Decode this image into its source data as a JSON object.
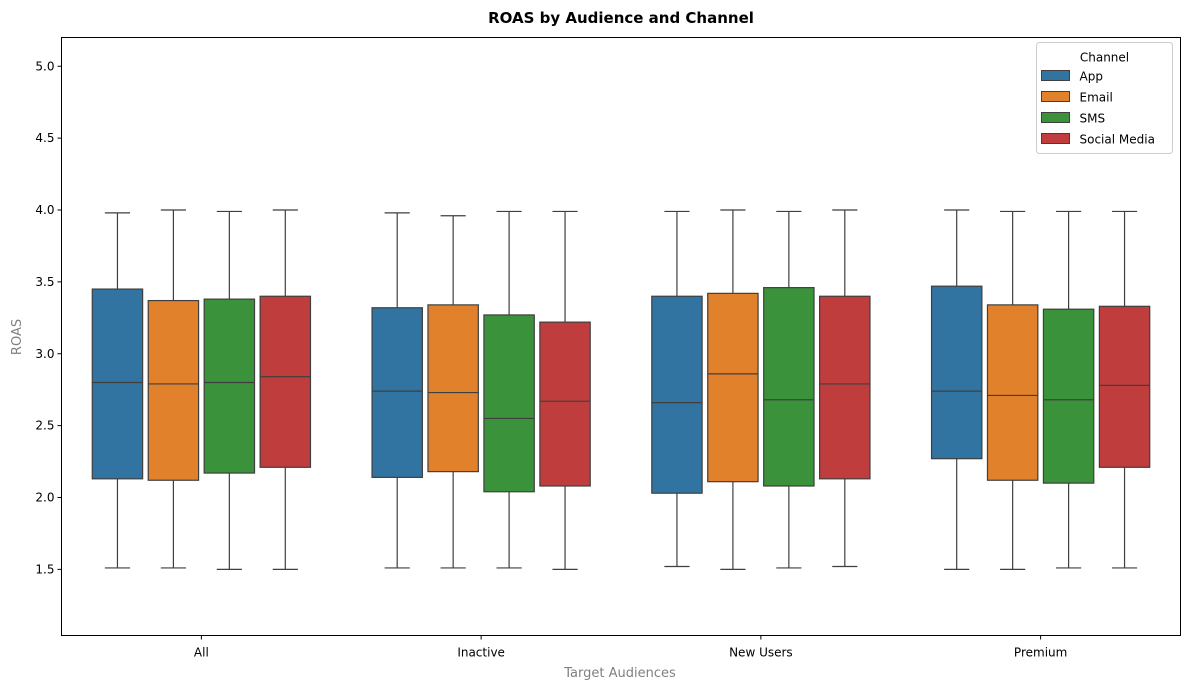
{
  "chart_data": {
    "type": "box",
    "title": "ROAS by Audience and Channel",
    "xlabel": "Target Audiences",
    "ylabel": "ROAS",
    "ylim": [
      1.04,
      5.2
    ],
    "yticks": [
      1.5,
      2.0,
      2.5,
      3.0,
      3.5,
      4.0,
      4.5,
      5.0
    ],
    "ytick_labels": [
      "1.5",
      "2.0",
      "2.5",
      "3.0",
      "3.5",
      "4.0",
      "4.5",
      "5.0"
    ],
    "grid": false,
    "categories": [
      "All",
      "Inactive",
      "New Users",
      "Premium"
    ],
    "legend": {
      "title": "Channel",
      "placement": "top-right"
    },
    "series": [
      {
        "name": "App",
        "color": "#3274a1",
        "boxes": [
          {
            "min": 1.51,
            "q1": 2.13,
            "median": 2.8,
            "q3": 3.45,
            "max": 3.98
          },
          {
            "min": 1.51,
            "q1": 2.14,
            "median": 2.74,
            "q3": 3.32,
            "max": 3.98
          },
          {
            "min": 1.52,
            "q1": 2.03,
            "median": 2.66,
            "q3": 3.4,
            "max": 3.99
          },
          {
            "min": 1.5,
            "q1": 2.27,
            "median": 2.74,
            "q3": 3.47,
            "max": 4.0
          }
        ]
      },
      {
        "name": "Email",
        "color": "#e1812c",
        "boxes": [
          {
            "min": 1.51,
            "q1": 2.12,
            "median": 2.79,
            "q3": 3.37,
            "max": 4.0
          },
          {
            "min": 1.51,
            "q1": 2.18,
            "median": 2.73,
            "q3": 3.34,
            "max": 3.96
          },
          {
            "min": 1.5,
            "q1": 2.11,
            "median": 2.86,
            "q3": 3.42,
            "max": 4.0
          },
          {
            "min": 1.5,
            "q1": 2.12,
            "median": 2.71,
            "q3": 3.34,
            "max": 3.99
          }
        ]
      },
      {
        "name": "SMS",
        "color": "#3a923a",
        "boxes": [
          {
            "min": 1.5,
            "q1": 2.17,
            "median": 2.8,
            "q3": 3.38,
            "max": 3.99
          },
          {
            "min": 1.51,
            "q1": 2.04,
            "median": 2.55,
            "q3": 3.27,
            "max": 3.99
          },
          {
            "min": 1.51,
            "q1": 2.08,
            "median": 2.68,
            "q3": 3.46,
            "max": 3.99
          },
          {
            "min": 1.51,
            "q1": 2.1,
            "median": 2.68,
            "q3": 3.31,
            "max": 3.99
          }
        ]
      },
      {
        "name": "Social Media",
        "color": "#c03d3e",
        "boxes": [
          {
            "min": 1.5,
            "q1": 2.21,
            "median": 2.84,
            "q3": 3.4,
            "max": 4.0
          },
          {
            "min": 1.5,
            "q1": 2.08,
            "median": 2.67,
            "q3": 3.22,
            "max": 3.99
          },
          {
            "min": 1.52,
            "q1": 2.13,
            "median": 2.79,
            "q3": 3.4,
            "max": 4.0
          },
          {
            "min": 1.51,
            "q1": 2.21,
            "median": 2.78,
            "q3": 3.33,
            "max": 3.99
          }
        ]
      }
    ]
  }
}
